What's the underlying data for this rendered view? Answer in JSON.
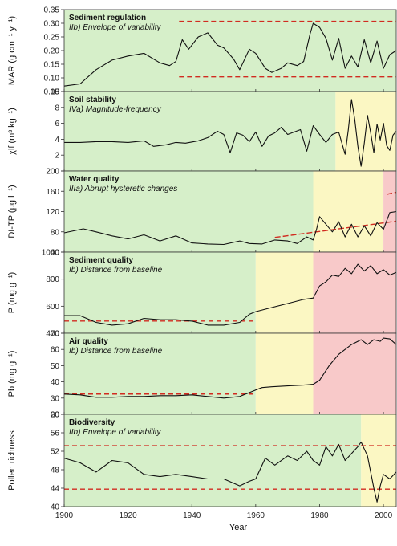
{
  "colors": {
    "green": "#d6efc9",
    "yellow": "#fbf7c3",
    "red": "#f8c9c9",
    "line": "#111111",
    "ref": "#d12b20"
  },
  "chart_data": [
    {
      "type": "line",
      "id": "sediment-regulation",
      "title": "Sediment regulation",
      "subtitle": "IIb) Envelope of variability",
      "ylabel": "MAR (g cm⁻¹ y⁻¹)",
      "ylim": [
        0.05,
        0.35
      ],
      "yticks": [
        "0.05",
        "0.10",
        "0.15",
        "0.20",
        "0.25",
        "0.30",
        "0.35"
      ],
      "zones": [
        {
          "from": 1900,
          "to": 2004,
          "color": "green"
        }
      ],
      "ref_lines": [
        {
          "x1": 1936,
          "y1": 0.307,
          "x2": 2004,
          "y2": 0.307
        },
        {
          "x1": 1936,
          "y1": 0.104,
          "x2": 2004,
          "y2": 0.104
        }
      ],
      "x": [
        1900,
        1905,
        1910,
        1915,
        1920,
        1925,
        1930,
        1933,
        1935,
        1937,
        1939,
        1942,
        1945,
        1948,
        1950,
        1953,
        1955,
        1958,
        1960,
        1963,
        1965,
        1968,
        1970,
        1973,
        1975,
        1977,
        1978,
        1980,
        1982,
        1984,
        1986,
        1988,
        1990,
        1992,
        1994,
        1996,
        1998,
        2000,
        2002,
        2004
      ],
      "values": [
        0.07,
        0.078,
        0.13,
        0.165,
        0.18,
        0.19,
        0.155,
        0.145,
        0.16,
        0.24,
        0.205,
        0.25,
        0.265,
        0.22,
        0.21,
        0.17,
        0.13,
        0.205,
        0.19,
        0.135,
        0.12,
        0.135,
        0.155,
        0.145,
        0.16,
        0.26,
        0.3,
        0.285,
        0.245,
        0.165,
        0.245,
        0.135,
        0.18,
        0.14,
        0.24,
        0.155,
        0.235,
        0.135,
        0.185,
        0.2
      ]
    },
    {
      "type": "line",
      "id": "soil-stability",
      "title": "Soil stability",
      "subtitle": "IVa) Magnitude-frequency",
      "ylabel": "χlf (m³ kg⁻¹)",
      "ylim": [
        0,
        10
      ],
      "yticks": [
        "0",
        "2",
        "4",
        "6",
        "8",
        "10"
      ],
      "zones": [
        {
          "from": 1900,
          "to": 1985,
          "color": "green"
        },
        {
          "from": 1985,
          "to": 2004,
          "color": "yellow"
        }
      ],
      "ref_lines": [],
      "x": [
        1900,
        1905,
        1910,
        1915,
        1920,
        1925,
        1928,
        1932,
        1935,
        1938,
        1942,
        1945,
        1948,
        1950,
        1952,
        1954,
        1956,
        1958,
        1960,
        1962,
        1964,
        1966,
        1968,
        1970,
        1972,
        1974,
        1976,
        1978,
        1980,
        1982,
        1984,
        1986,
        1988,
        1989,
        1990,
        1991,
        1992,
        1993,
        1994,
        1995,
        1996,
        1997,
        1998,
        1999,
        2000,
        2001,
        2002,
        2003,
        2004
      ],
      "values": [
        3.6,
        3.6,
        3.7,
        3.7,
        3.6,
        3.8,
        3.1,
        3.3,
        3.6,
        3.5,
        3.8,
        4.2,
        5.0,
        4.6,
        2.3,
        4.8,
        4.5,
        3.7,
        4.9,
        3.1,
        4.4,
        4.8,
        5.5,
        4.6,
        4.9,
        5.2,
        2.5,
        5.7,
        4.6,
        3.6,
        4.6,
        4.9,
        2.1,
        5.2,
        9.0,
        6.5,
        3.1,
        0.6,
        3.5,
        7.0,
        4.8,
        2.3,
        5.9,
        3.9,
        6.0,
        3.2,
        2.6,
        4.5,
        5.0
      ]
    },
    {
      "type": "line",
      "id": "water-quality",
      "title": "Water quality",
      "subtitle": "IIIa) Abrupt hysteretic changes",
      "ylabel": "DI-TP (μg l⁻¹)",
      "ylim": [
        40,
        200
      ],
      "yticks": [
        "40",
        "80",
        "120",
        "160",
        "200"
      ],
      "zones": [
        {
          "from": 1900,
          "to": 1978,
          "color": "green"
        },
        {
          "from": 1978,
          "to": 2000,
          "color": "yellow"
        },
        {
          "from": 2000,
          "to": 2004,
          "color": "red"
        }
      ],
      "ref_lines": [
        {
          "x1": 1966,
          "y1": 69,
          "x2": 2004,
          "y2": 101
        },
        {
          "x1": 2001,
          "y1": 154,
          "x2": 2004,
          "y2": 158
        }
      ],
      "x": [
        1900,
        1903,
        1906,
        1910,
        1915,
        1920,
        1925,
        1930,
        1935,
        1940,
        1945,
        1950,
        1955,
        1958,
        1962,
        1966,
        1970,
        1973,
        1976,
        1978,
        1979,
        1980,
        1982,
        1984,
        1986,
        1988,
        1990,
        1992,
        1994,
        1996,
        1998,
        2000,
        2002,
        2004
      ],
      "values": [
        78,
        82,
        86,
        80,
        72,
        66,
        74,
        62,
        72,
        58,
        56,
        55,
        62,
        57,
        56,
        64,
        62,
        57,
        70,
        64,
        84,
        110,
        95,
        80,
        100,
        70,
        95,
        70,
        92,
        72,
        98,
        85,
        118,
        120
      ]
    },
    {
      "type": "line",
      "id": "sediment-quality",
      "title": "Sediment quality",
      "subtitle": "Ib) Distance from baseline",
      "ylabel": "P (mg g⁻¹)",
      "ylim": [
        400,
        1000
      ],
      "yticks": [
        "400",
        "600",
        "800",
        "1000"
      ],
      "zones": [
        {
          "from": 1900,
          "to": 1960,
          "color": "green"
        },
        {
          "from": 1960,
          "to": 1978,
          "color": "yellow"
        },
        {
          "from": 1978,
          "to": 2004,
          "color": "red"
        }
      ],
      "ref_lines": [
        {
          "x1": 1900,
          "y1": 490,
          "x2": 1960,
          "y2": 490
        }
      ],
      "x": [
        1900,
        1905,
        1910,
        1915,
        1920,
        1925,
        1930,
        1935,
        1940,
        1945,
        1950,
        1955,
        1958,
        1960,
        1965,
        1970,
        1975,
        1978,
        1980,
        1982,
        1984,
        1986,
        1988,
        1990,
        1992,
        1994,
        1996,
        1998,
        2000,
        2002,
        2004
      ],
      "values": [
        530,
        530,
        480,
        460,
        470,
        510,
        500,
        500,
        490,
        460,
        460,
        480,
        540,
        560,
        590,
        620,
        650,
        660,
        750,
        780,
        830,
        820,
        880,
        840,
        910,
        860,
        900,
        840,
        870,
        830,
        850
      ]
    },
    {
      "type": "line",
      "id": "air-quality",
      "title": "Air quality",
      "subtitle": "Ib) Distance from baseline",
      "ylabel": "Pb (mg g⁻¹)",
      "ylim": [
        20,
        70
      ],
      "yticks": [
        "20",
        "30",
        "40",
        "50",
        "60",
        "70"
      ],
      "zones": [
        {
          "from": 1900,
          "to": 1960,
          "color": "green"
        },
        {
          "from": 1960,
          "to": 1978,
          "color": "yellow"
        },
        {
          "from": 1978,
          "to": 2004,
          "color": "red"
        }
      ],
      "ref_lines": [
        {
          "x1": 1900,
          "y1": 32.5,
          "x2": 1960,
          "y2": 32.5
        }
      ],
      "x": [
        1900,
        1905,
        1910,
        1915,
        1920,
        1925,
        1930,
        1935,
        1940,
        1945,
        1950,
        1955,
        1960,
        1962,
        1965,
        1970,
        1975,
        1978,
        1980,
        1983,
        1986,
        1990,
        1993,
        1995,
        1997,
        1999,
        2000,
        2002,
        2004
      ],
      "values": [
        32.5,
        32.0,
        30.5,
        30.5,
        31.0,
        31.0,
        31.5,
        31.5,
        32.0,
        31.0,
        30.0,
        31.0,
        35.0,
        36.5,
        37.0,
        37.5,
        38.0,
        38.5,
        41.0,
        50.0,
        57.0,
        63.0,
        66.0,
        63.0,
        66.0,
        65.0,
        67.0,
        66.5,
        63.0
      ]
    },
    {
      "type": "line",
      "id": "biodiversity",
      "title": "Biodiversity",
      "subtitle": "IIb) Envelope of variability",
      "ylabel": "Pollen richness",
      "xlabel": "Year",
      "ylim": [
        40,
        60
      ],
      "yticks": [
        "40",
        "44",
        "48",
        "52",
        "56",
        "60"
      ],
      "xticks": [
        "1900",
        "1920",
        "1940",
        "1960",
        "1980",
        "2000"
      ],
      "zones": [
        {
          "from": 1900,
          "to": 1993,
          "color": "green"
        },
        {
          "from": 1993,
          "to": 2004,
          "color": "yellow"
        }
      ],
      "ref_lines": [
        {
          "x1": 1900,
          "y1": 53.2,
          "x2": 2004,
          "y2": 53.2
        },
        {
          "x1": 1900,
          "y1": 43.8,
          "x2": 2004,
          "y2": 43.8
        }
      ],
      "x": [
        1900,
        1905,
        1910,
        1915,
        1920,
        1925,
        1930,
        1935,
        1940,
        1945,
        1950,
        1955,
        1958,
        1960,
        1963,
        1966,
        1970,
        1973,
        1976,
        1978,
        1980,
        1982,
        1984,
        1986,
        1988,
        1990,
        1992,
        1993,
        1995,
        1997,
        1998,
        1999,
        2000,
        2002,
        2004
      ],
      "values": [
        50.5,
        49.5,
        47.5,
        50.0,
        49.5,
        47.0,
        46.5,
        47.0,
        46.5,
        46.0,
        46.0,
        44.5,
        45.5,
        46.0,
        50.5,
        49.0,
        51.0,
        50.0,
        52.0,
        50.0,
        49.0,
        53.0,
        51.0,
        53.5,
        50.0,
        51.5,
        53.0,
        54.0,
        51.0,
        44.0,
        41.0,
        44.5,
        47.0,
        46.0,
        47.5
      ]
    }
  ]
}
